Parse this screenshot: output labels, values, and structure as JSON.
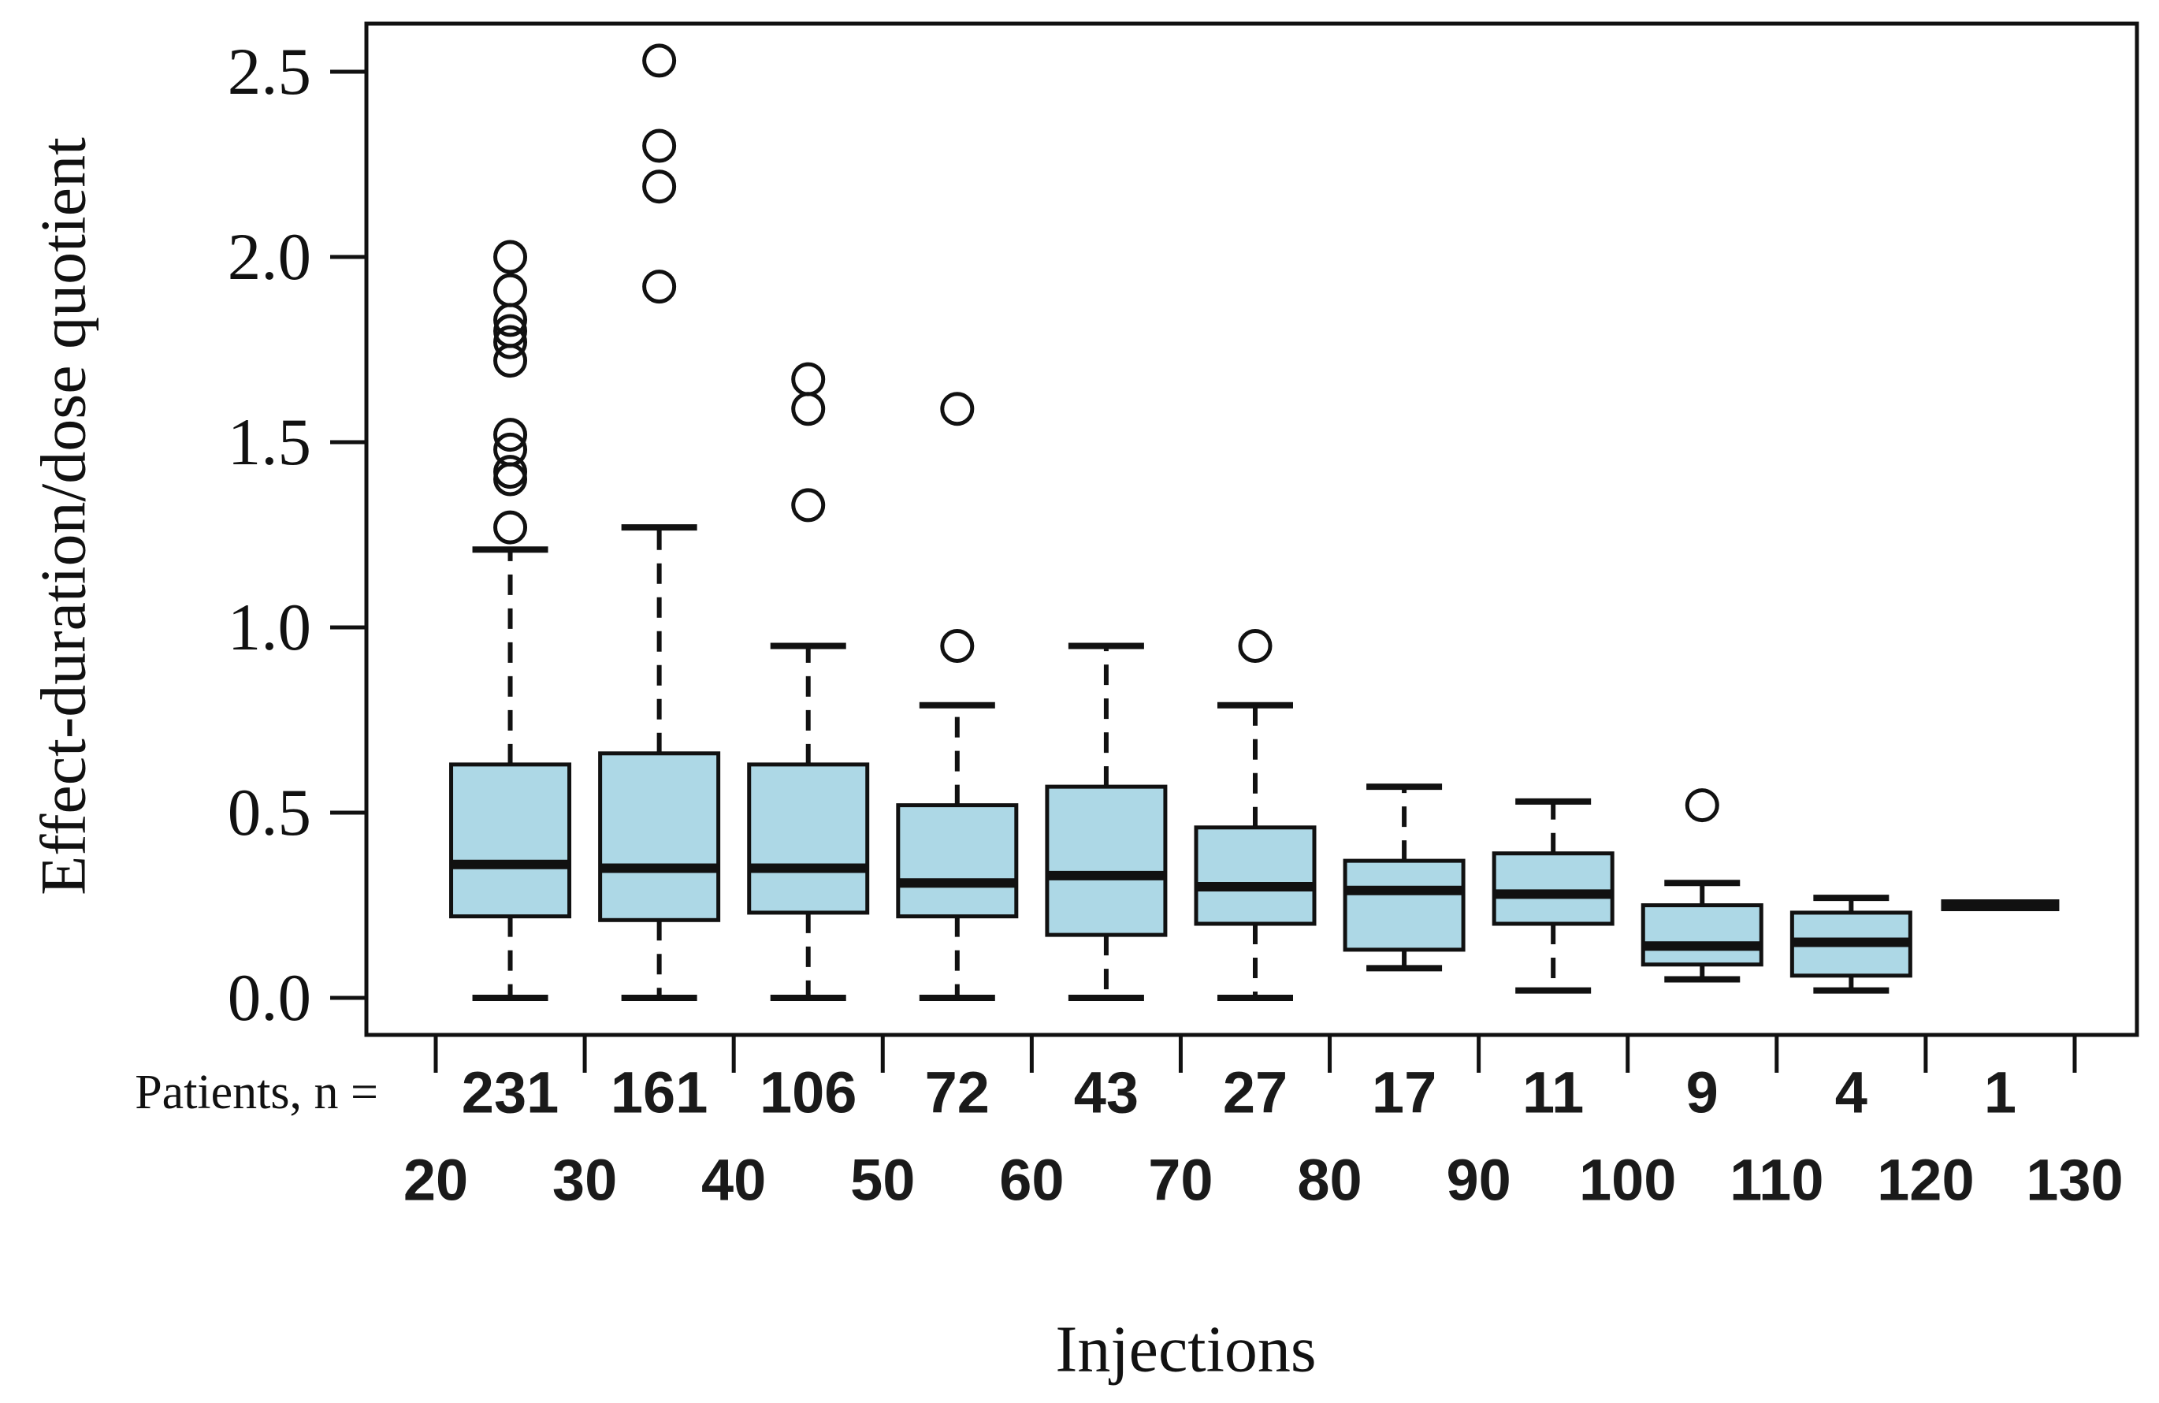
{
  "figure": {
    "ylabel": "Effect-duration/dose quotient",
    "xlabel": "Injections",
    "patients_row_label": "Patients, n ="
  },
  "colors": {
    "box_fill": "#ADD8E6",
    "line": "#111111",
    "background": "#FFFFFF"
  },
  "chart_data": {
    "type": "boxplot",
    "title": "",
    "xlabel": "Injections",
    "ylabel": "Effect-duration/dose quotient",
    "patients_label": "Patients, n =",
    "grid": false,
    "legend": false,
    "xlim": [
      15.3,
      134.2
    ],
    "ylim": [
      -0.1,
      2.63
    ],
    "x_tick_values": [
      20,
      30,
      40,
      50,
      60,
      70,
      80,
      90,
      100,
      110,
      120,
      130
    ],
    "x_tick_labels": [
      "20",
      "30",
      "40",
      "50",
      "60",
      "70",
      "80",
      "90",
      "100",
      "110",
      "120",
      "130"
    ],
    "y_tick_values": [
      0.0,
      0.5,
      1.0,
      1.5,
      2.0,
      2.5
    ],
    "y_tick_labels": [
      "0.0",
      "0.5",
      "1.0",
      "1.5",
      "2.0",
      "2.5"
    ],
    "groups": [
      {
        "injections": 25,
        "n": "231",
        "whisker_low": 0.0,
        "q1": 0.22,
        "median": 0.36,
        "q3": 0.63,
        "whisker_high": 1.21,
        "outliers": [
          1.27,
          1.4,
          1.42,
          1.48,
          1.52,
          1.72,
          1.77,
          1.8,
          1.83,
          1.91,
          2.0
        ],
        "single_value": false
      },
      {
        "injections": 35,
        "n": "161",
        "whisker_low": 0.0,
        "q1": 0.21,
        "median": 0.35,
        "q3": 0.66,
        "whisker_high": 1.27,
        "outliers": [
          1.92,
          2.19,
          2.3,
          2.53
        ],
        "single_value": false
      },
      {
        "injections": 45,
        "n": "106",
        "whisker_low": 0.0,
        "q1": 0.23,
        "median": 0.35,
        "q3": 0.63,
        "whisker_high": 0.95,
        "outliers": [
          1.33,
          1.59,
          1.67
        ],
        "single_value": false
      },
      {
        "injections": 55,
        "n": "72",
        "whisker_low": 0.0,
        "q1": 0.22,
        "median": 0.31,
        "q3": 0.52,
        "whisker_high": 0.79,
        "outliers": [
          0.95,
          1.59
        ],
        "single_value": false
      },
      {
        "injections": 65,
        "n": "43",
        "whisker_low": 0.0,
        "q1": 0.17,
        "median": 0.33,
        "q3": 0.57,
        "whisker_high": 0.95,
        "outliers": [],
        "single_value": false
      },
      {
        "injections": 75,
        "n": "27",
        "whisker_low": 0.0,
        "q1": 0.2,
        "median": 0.3,
        "q3": 0.46,
        "whisker_high": 0.79,
        "outliers": [
          0.95
        ],
        "single_value": false
      },
      {
        "injections": 85,
        "n": "17",
        "whisker_low": 0.08,
        "q1": 0.13,
        "median": 0.29,
        "q3": 0.37,
        "whisker_high": 0.57,
        "outliers": [],
        "single_value": false
      },
      {
        "injections": 95,
        "n": "11",
        "whisker_low": 0.02,
        "q1": 0.2,
        "median": 0.28,
        "q3": 0.39,
        "whisker_high": 0.53,
        "outliers": [],
        "single_value": false
      },
      {
        "injections": 105,
        "n": "9",
        "whisker_low": 0.05,
        "q1": 0.09,
        "median": 0.14,
        "q3": 0.25,
        "whisker_high": 0.31,
        "outliers": [
          0.52
        ],
        "single_value": false
      },
      {
        "injections": 115,
        "n": "4",
        "whisker_low": 0.02,
        "q1": 0.06,
        "median": 0.15,
        "q3": 0.23,
        "whisker_high": 0.27,
        "outliers": [],
        "single_value": false
      },
      {
        "injections": 125,
        "n": "1",
        "whisker_low": 0.25,
        "q1": 0.25,
        "median": 0.25,
        "q3": 0.25,
        "whisker_high": 0.25,
        "outliers": [],
        "single_value": true
      }
    ]
  }
}
